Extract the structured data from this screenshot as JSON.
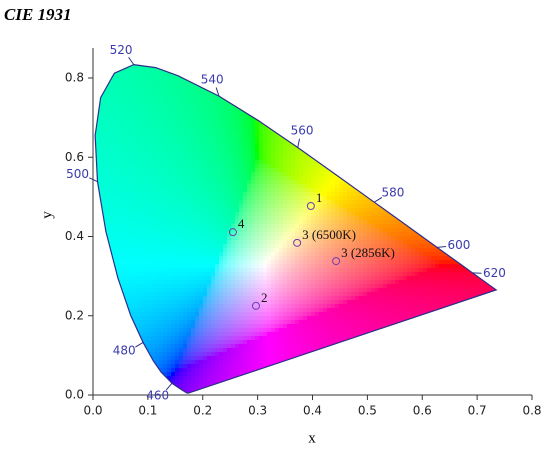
{
  "chart_data": {
    "type": "scatter",
    "title": "CIE 1931",
    "x_label": "x",
    "y_label": "y",
    "xlim": [
      0,
      0.8
    ],
    "ylim": [
      0,
      0.8
    ],
    "xticks": [
      {
        "value": 0,
        "label": "0.0"
      },
      0.1,
      0.2,
      0.3,
      0.4,
      0.5,
      0.6,
      0.7,
      0.8
    ],
    "yticks": [
      {
        "value": 0,
        "label": "0.0"
      },
      0.2,
      0.4,
      0.6,
      0.8
    ],
    "locus": {
      "color": "#2e2e8a",
      "x": [
        0.1741,
        0.1714,
        0.1644,
        0.1566,
        0.144,
        0.1241,
        0.1096,
        0.0913,
        0.0687,
        0.0454,
        0.0235,
        0.0082,
        0.0039,
        0.0139,
        0.0389,
        0.0743,
        0.1142,
        0.1547,
        0.2296,
        0.3016,
        0.3731,
        0.4441,
        0.5125,
        0.5752,
        0.627,
        0.6658,
        0.6915,
        0.719,
        0.7347
      ],
      "y": [
        0.005,
        0.0051,
        0.0109,
        0.0177,
        0.0297,
        0.0578,
        0.0868,
        0.1327,
        0.2007,
        0.295,
        0.4127,
        0.5384,
        0.6548,
        0.7502,
        0.812,
        0.8338,
        0.8262,
        0.8059,
        0.7543,
        0.6923,
        0.6245,
        0.5547,
        0.4866,
        0.4242,
        0.3725,
        0.334,
        0.3083,
        0.2809,
        0.2653
      ]
    },
    "wavelength_labels": [
      {
        "label": "460",
        "x": 0.144,
        "y": 0.0297
      },
      {
        "label": "480",
        "x": 0.0913,
        "y": 0.1327
      },
      {
        "label": "500",
        "x": 0.0082,
        "y": 0.5384
      },
      {
        "label": "520",
        "x": 0.0743,
        "y": 0.8338
      },
      {
        "label": "540",
        "x": 0.2296,
        "y": 0.7543
      },
      {
        "label": "560",
        "x": 0.3731,
        "y": 0.6245
      },
      {
        "label": "580",
        "x": 0.5125,
        "y": 0.4866
      },
      {
        "label": "600",
        "x": 0.627,
        "y": 0.3725
      },
      {
        "label": "620",
        "x": 0.6915,
        "y": 0.3083
      }
    ],
    "points": {
      "color": "#6a3fb0",
      "labels": [
        "1",
        "2",
        "3 (6500K)",
        "3 (2856K)",
        "4"
      ],
      "x": [
        0.397,
        0.297,
        0.372,
        0.443,
        0.255
      ],
      "y": [
        0.477,
        0.225,
        0.384,
        0.338,
        0.411
      ]
    }
  }
}
